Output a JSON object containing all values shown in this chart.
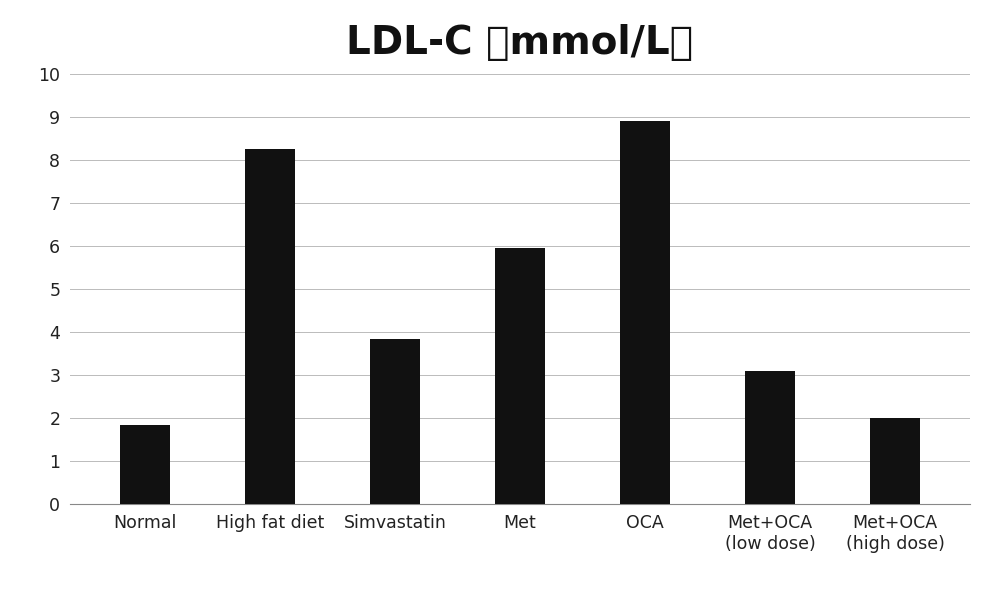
{
  "title": "LDL-C （mmol/L）",
  "categories": [
    "Normal",
    "High fat diet",
    "Simvastatin",
    "Met",
    "OCA",
    "Met+OCA\n(low dose)",
    "Met+OCA\n(high dose)"
  ],
  "values": [
    1.85,
    8.25,
    3.85,
    5.95,
    8.9,
    3.1,
    2.0
  ],
  "bar_color": "#111111",
  "ylim": [
    0,
    10
  ],
  "yticks": [
    0,
    1,
    2,
    3,
    4,
    5,
    6,
    7,
    8,
    9,
    10
  ],
  "grid_color": "#bbbbbb",
  "title_fontsize": 28,
  "tick_fontsize": 12.5,
  "bar_width": 0.4,
  "background_color": "#ffffff"
}
